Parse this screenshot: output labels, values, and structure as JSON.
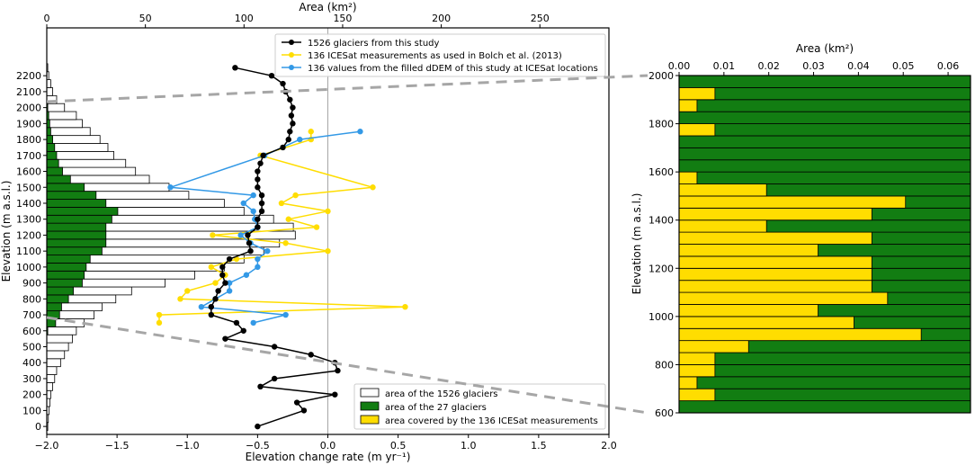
{
  "chart_data": [
    {
      "type": "bar+line",
      "panel": "left",
      "title": "",
      "top_axis_label": "Area (km²)",
      "top_axis_ticks": [
        0,
        50,
        100,
        150,
        200,
        250
      ],
      "top_axis_tick_labels": [
        "0",
        "50",
        "100",
        "150",
        "200",
        "250"
      ],
      "top_axis_range": [
        0,
        285
      ],
      "xlabel": "Elevation change rate (m yr⁻¹)",
      "x_ticks": [
        -2.0,
        -1.5,
        -1.0,
        -0.5,
        0.0,
        0.5,
        1.0,
        1.5,
        2.0
      ],
      "x_tick_labels": [
        "−2.0",
        "−1.5",
        "−1.0",
        "−0.5",
        "0.0",
        "0.5",
        "1.0",
        "1.5",
        "2.0"
      ],
      "xlim": [
        -2.0,
        2.0
      ],
      "ylabel": "Elevation (m a.s.l.)",
      "y_ticks": [
        0,
        100,
        200,
        300,
        400,
        500,
        600,
        700,
        800,
        900,
        1000,
        1100,
        1200,
        1300,
        1400,
        1500,
        1600,
        1700,
        1800,
        1900,
        2000,
        2100,
        2200
      ],
      "y_tick_labels": [
        "0",
        "100",
        "200",
        "300",
        "400",
        "500",
        "600",
        "700",
        "800",
        "900",
        "1000",
        "1100",
        "1200",
        "1300",
        "1400",
        "1500",
        "1600",
        "1700",
        "1800",
        "1900",
        "2000",
        "2100",
        "2200"
      ],
      "ylim": [
        -50,
        2500
      ],
      "bar_elevations": [
        0,
        50,
        100,
        150,
        200,
        250,
        300,
        350,
        400,
        450,
        500,
        550,
        600,
        650,
        700,
        750,
        800,
        850,
        900,
        950,
        1000,
        1050,
        1100,
        1150,
        1200,
        1250,
        1300,
        1350,
        1400,
        1450,
        1500,
        1550,
        1600,
        1650,
        1700,
        1750,
        1800,
        1850,
        1900,
        1950,
        2000,
        2050,
        2100,
        2150,
        2200,
        2250
      ],
      "bar_series": [
        {
          "name": "area of the 1526 glaciers",
          "color": "#ffffff",
          "values": [
            0.5,
            0.8,
            1.2,
            1.6,
            2,
            3,
            4,
            5,
            7,
            9,
            11,
            13,
            15,
            19,
            24,
            28,
            35,
            43,
            60,
            75,
            90,
            100,
            110,
            118,
            126,
            125,
            115,
            100,
            90,
            72,
            62,
            52,
            45,
            40,
            34,
            31,
            27,
            22,
            18,
            15,
            9,
            5,
            3,
            2,
            1,
            0.5
          ]
        },
        {
          "name": "area of the 27 glaciers",
          "color": "#127d12",
          "values": [
            0,
            0,
            0,
            0,
            0,
            0,
            0,
            0,
            0,
            0,
            0,
            0,
            0.5,
            4.5,
            6.5,
            7.5,
            11,
            13.5,
            18,
            19,
            20,
            22,
            28,
            30,
            30,
            30,
            33,
            36,
            30,
            25,
            19,
            12,
            8,
            6,
            5,
            4,
            3,
            2,
            1.5,
            1,
            0.5,
            0,
            0,
            0,
            0,
            0
          ]
        }
      ],
      "series": [
        {
          "name": "1526 glaciers from this study",
          "color": "#000000",
          "points": [
            {
              "x": -0.5,
              "y": 0
            },
            {
              "x": -0.17,
              "y": 100
            },
            {
              "x": -0.22,
              "y": 150
            },
            {
              "x": 0.05,
              "y": 200
            },
            {
              "x": -0.48,
              "y": 250
            },
            {
              "x": -0.38,
              "y": 300
            },
            {
              "x": 0.07,
              "y": 350
            },
            {
              "x": 0.05,
              "y": 400
            },
            {
              "x": -0.12,
              "y": 450
            },
            {
              "x": -0.38,
              "y": 500
            },
            {
              "x": -0.73,
              "y": 550
            },
            {
              "x": -0.6,
              "y": 600
            },
            {
              "x": -0.65,
              "y": 650
            },
            {
              "x": -0.83,
              "y": 700
            },
            {
              "x": -0.83,
              "y": 750
            },
            {
              "x": -0.8,
              "y": 800
            },
            {
              "x": -0.78,
              "y": 850
            },
            {
              "x": -0.73,
              "y": 900
            },
            {
              "x": -0.75,
              "y": 950
            },
            {
              "x": -0.75,
              "y": 1000
            },
            {
              "x": -0.7,
              "y": 1050
            },
            {
              "x": -0.55,
              "y": 1100
            },
            {
              "x": -0.56,
              "y": 1150
            },
            {
              "x": -0.57,
              "y": 1200
            },
            {
              "x": -0.5,
              "y": 1250
            },
            {
              "x": -0.5,
              "y": 1300
            },
            {
              "x": -0.47,
              "y": 1350
            },
            {
              "x": -0.47,
              "y": 1400
            },
            {
              "x": -0.47,
              "y": 1450
            },
            {
              "x": -0.5,
              "y": 1500
            },
            {
              "x": -0.5,
              "y": 1550
            },
            {
              "x": -0.5,
              "y": 1600
            },
            {
              "x": -0.48,
              "y": 1650
            },
            {
              "x": -0.46,
              "y": 1700
            },
            {
              "x": -0.32,
              "y": 1750
            },
            {
              "x": -0.28,
              "y": 1800
            },
            {
              "x": -0.27,
              "y": 1850
            },
            {
              "x": -0.25,
              "y": 1900
            },
            {
              "x": -0.26,
              "y": 1950
            },
            {
              "x": -0.25,
              "y": 2000
            },
            {
              "x": -0.27,
              "y": 2050
            },
            {
              "x": -0.3,
              "y": 2100
            },
            {
              "x": -0.32,
              "y": 2150
            },
            {
              "x": -0.4,
              "y": 2200
            },
            {
              "x": -0.66,
              "y": 2250
            }
          ]
        },
        {
          "name": "136 ICESat measurements as used in Bolch et al. (2013)",
          "color": "#ffdd00",
          "points": [
            {
              "x": -1.2,
              "y": 650
            },
            {
              "x": -1.2,
              "y": 700
            },
            {
              "x": 0.55,
              "y": 750
            },
            {
              "x": -1.05,
              "y": 800
            },
            {
              "x": -1.0,
              "y": 850
            },
            {
              "x": -0.8,
              "y": 900
            },
            {
              "x": -0.73,
              "y": 950
            },
            {
              "x": -0.83,
              "y": 1000
            },
            {
              "x": -0.65,
              "y": 1050
            },
            {
              "x": 0.0,
              "y": 1100
            },
            {
              "x": -0.3,
              "y": 1150
            },
            {
              "x": -0.82,
              "y": 1200
            },
            {
              "x": -0.08,
              "y": 1250
            },
            {
              "x": -0.28,
              "y": 1300
            },
            {
              "x": 0.0,
              "y": 1350
            },
            {
              "x": -0.33,
              "y": 1400
            },
            {
              "x": -0.23,
              "y": 1450
            },
            {
              "x": 0.32,
              "y": 1500
            },
            {
              "x": -0.48,
              "y": 1700
            },
            {
              "x": -0.12,
              "y": 1800
            },
            {
              "x": -0.12,
              "y": 1850
            }
          ]
        },
        {
          "name": "136 values from the filled dDEM of this study at ICESat locations",
          "color": "#3399e6",
          "points": [
            {
              "x": -0.53,
              "y": 650
            },
            {
              "x": -0.3,
              "y": 700
            },
            {
              "x": -0.9,
              "y": 750
            },
            {
              "x": -0.8,
              "y": 800
            },
            {
              "x": -0.7,
              "y": 850
            },
            {
              "x": -0.7,
              "y": 900
            },
            {
              "x": -0.58,
              "y": 950
            },
            {
              "x": -0.5,
              "y": 1000
            },
            {
              "x": -0.5,
              "y": 1050
            },
            {
              "x": -0.43,
              "y": 1100
            },
            {
              "x": -0.55,
              "y": 1150
            },
            {
              "x": -0.62,
              "y": 1200
            },
            {
              "x": -0.5,
              "y": 1250
            },
            {
              "x": -0.52,
              "y": 1300
            },
            {
              "x": -0.53,
              "y": 1350
            },
            {
              "x": -0.6,
              "y": 1400
            },
            {
              "x": -0.53,
              "y": 1450
            },
            {
              "x": -1.12,
              "y": 1500
            },
            {
              "x": -0.45,
              "y": 1700
            },
            {
              "x": -0.2,
              "y": 1800
            },
            {
              "x": 0.23,
              "y": 1850
            }
          ]
        }
      ],
      "reference_line_x": 0.0,
      "line_legend": {
        "placement": "top-right",
        "entries": [
          "1526 glaciers from this study",
          "136 ICESat measurements as used in Bolch et al. (2013)",
          "136 values from the filled dDEM of this study at ICESat locations"
        ]
      },
      "bar_legend": {
        "placement": "bottom-right",
        "entries": [
          {
            "label": "area of the 1526 glaciers",
            "color": "#ffffff"
          },
          {
            "label": "area of the 27 glaciers",
            "color": "#127d12"
          },
          {
            "label": "area covered by the 136 ICESat measurements",
            "color": "#ffdd00"
          }
        ]
      }
    },
    {
      "type": "bar",
      "panel": "right",
      "title": "Area (km²)",
      "xlabel": "Area (km²)",
      "ylabel": "Elevation (m a.s.l.)",
      "x_ticks": [
        0.0,
        0.01,
        0.02,
        0.03,
        0.04,
        0.05,
        0.06
      ],
      "x_tick_labels": [
        "0.00",
        "0.01",
        "0.02",
        "0.03",
        "0.04",
        "0.05",
        "0.06"
      ],
      "xlim": [
        0,
        0.065
      ],
      "y_ticks": [
        600,
        800,
        1000,
        1200,
        1400,
        1600,
        1800,
        2000
      ],
      "y_tick_labels": [
        "600",
        "800",
        "1000",
        "1200",
        "1400",
        "1600",
        "1800",
        "2000"
      ],
      "ylim": [
        600,
        2000
      ],
      "bin_elevations": [
        650,
        700,
        750,
        800,
        850,
        900,
        950,
        1000,
        1050,
        1100,
        1150,
        1200,
        1250,
        1300,
        1350,
        1400,
        1450,
        1500,
        1550,
        1600,
        1650,
        1700,
        1750,
        1800,
        1850,
        1900,
        1950,
        2000
      ],
      "series": [
        {
          "name": "area of the 27 glaciers",
          "color": "#127d12",
          "values": [
            0.065,
            0.065,
            0.065,
            0.065,
            0.065,
            0.065,
            0.065,
            0.065,
            0.065,
            0.065,
            0.065,
            0.065,
            0.065,
            0.065,
            0.065,
            0.065,
            0.065,
            0.065,
            0.065,
            0.065,
            0.065,
            0.065,
            0.065,
            0.065,
            0.065,
            0.065,
            0.065,
            0.065
          ]
        },
        {
          "name": "area covered by the 136 ICESat measurements",
          "color": "#ffdd00",
          "values": [
            0.0,
            0.008,
            0.004,
            0.008,
            0.008,
            0.0155,
            0.054,
            0.039,
            0.031,
            0.0465,
            0.043,
            0.043,
            0.043,
            0.031,
            0.043,
            0.0195,
            0.043,
            0.0505,
            0.0195,
            0.004,
            0.0,
            0.0,
            0.0,
            0.008,
            0.0,
            0.004,
            0.008,
            0.0
          ]
        }
      ]
    }
  ]
}
